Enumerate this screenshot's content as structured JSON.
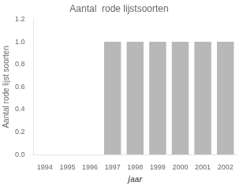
{
  "chart_data": {
    "type": "bar",
    "title": "Aantal  rode lijstsoorten",
    "xlabel": "jaar",
    "ylabel": "Aantal rode lijst soorten",
    "categories": [
      "1994",
      "1995",
      "1996",
      "1997",
      "1998",
      "1999",
      "2000",
      "2001",
      "2002"
    ],
    "values": [
      0,
      0,
      0,
      1,
      1,
      1,
      1,
      1,
      1
    ],
    "color": "#b8b8b8",
    "ylim": [
      0,
      1.2
    ],
    "yticks": [
      {
        "value": 0,
        "label": "0.0"
      },
      0.2,
      0.4,
      0.6,
      0.8,
      {
        "value": 1,
        "label": "1.0"
      },
      1.2
    ],
    "grid": false
  }
}
